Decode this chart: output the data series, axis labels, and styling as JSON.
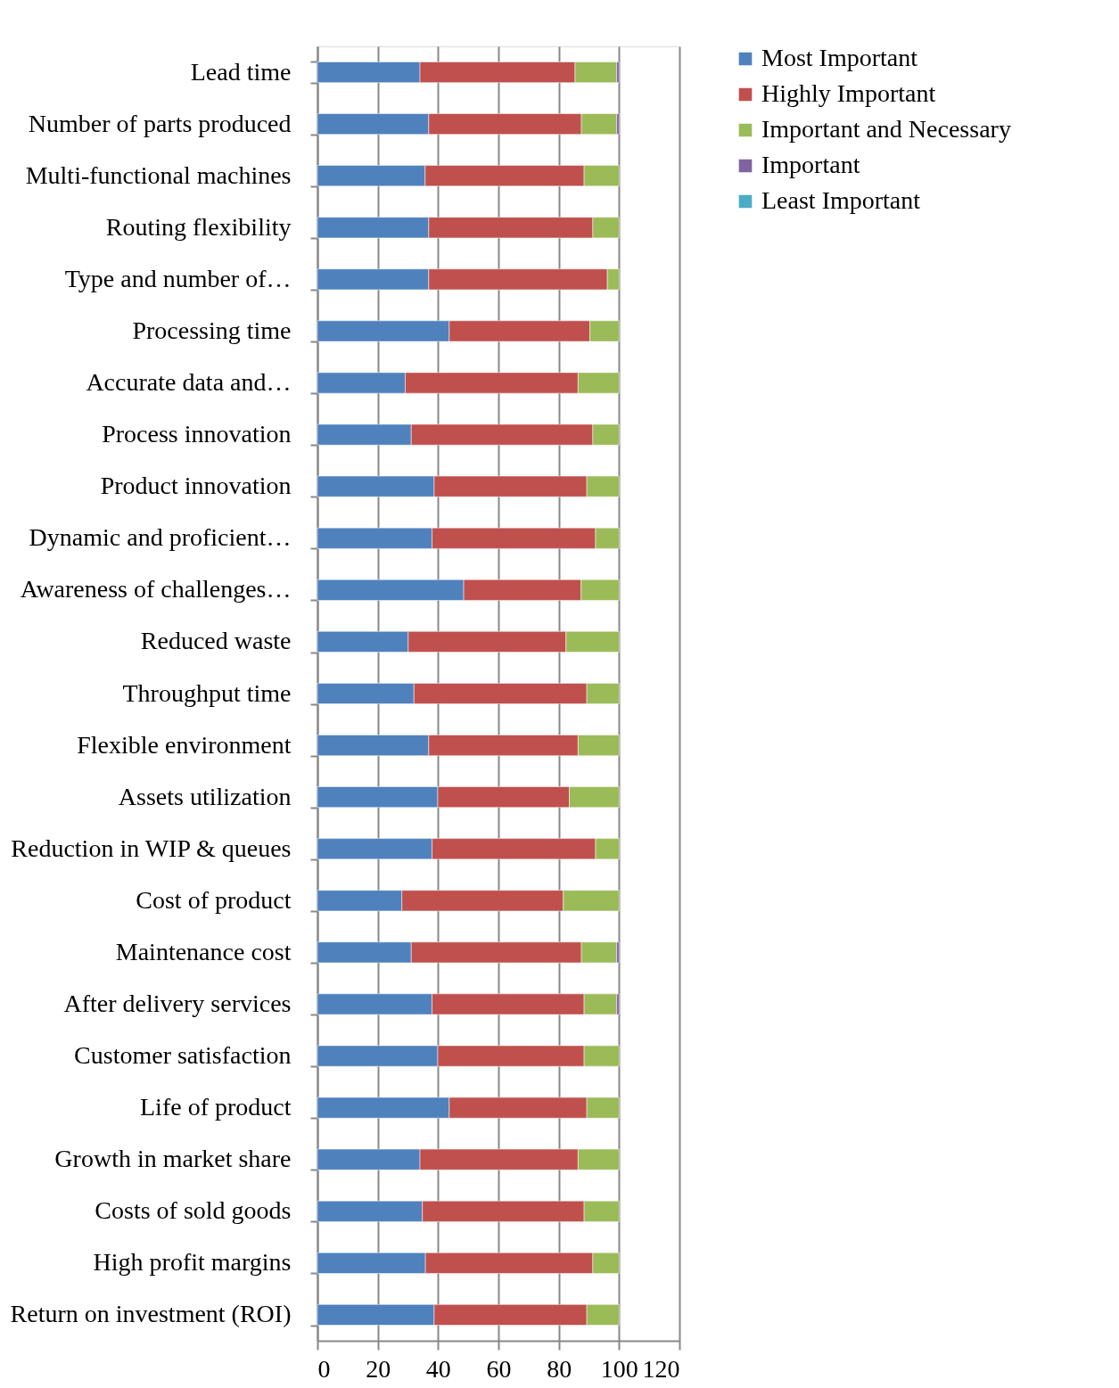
{
  "chart_data": {
    "type": "bar",
    "orientation": "horizontal",
    "stacked": true,
    "categories": [
      "Lead time",
      "Number of parts produced",
      "Multi-functional machines",
      "Routing flexibility",
      "Type and number of…",
      "Processing time",
      "Accurate data and…",
      "Process innovation",
      "Product innovation",
      "Dynamic and proficient…",
      "Awareness of challenges…",
      "Reduced waste",
      "Throughput time",
      "Flexible environment",
      "Assets utilization",
      "Reduction in WIP & queues",
      "Cost of product",
      "Maintenance cost",
      "After delivery services",
      "Customer satisfaction",
      "Life of product",
      "Growth in market share",
      "Costs of sold goods",
      "High profit margins",
      "Return on investment (ROI)"
    ],
    "series": [
      {
        "name": "Most Important",
        "color": "#4f81bd",
        "values": [
          34.0,
          36.9,
          35.7,
          36.9,
          36.9,
          43.7,
          29.1,
          31.1,
          38.7,
          38.0,
          48.5,
          30.1,
          32.0,
          36.9,
          39.9,
          38.0,
          28.0,
          31.1,
          38.0,
          39.9,
          43.7,
          34.0,
          34.8,
          35.8,
          38.7
        ]
      },
      {
        "name": "Highly Important",
        "color": "#c0504d",
        "values": [
          51.4,
          50.6,
          52.7,
          54.4,
          59.2,
          46.6,
          57.3,
          60.2,
          50.6,
          54.2,
          38.9,
          52.3,
          57.3,
          49.5,
          43.6,
          54.2,
          53.5,
          56.4,
          50.4,
          48.5,
          45.6,
          52.4,
          53.6,
          55.5,
          50.6
        ]
      },
      {
        "name": "Important and Necessary",
        "color": "#9bbb59",
        "values": [
          13.8,
          11.7,
          11.6,
          8.7,
          3.9,
          9.7,
          13.6,
          8.7,
          10.7,
          7.8,
          12.6,
          17.6,
          10.7,
          13.6,
          16.5,
          7.8,
          18.5,
          11.7,
          10.8,
          11.6,
          10.7,
          13.6,
          11.6,
          8.7,
          10.7
        ]
      },
      {
        "name": " Important",
        "color": "#8064a2",
        "values": [
          0.8,
          0.8,
          null,
          null,
          null,
          null,
          null,
          null,
          null,
          null,
          null,
          null,
          null,
          null,
          null,
          null,
          null,
          0.8,
          0.8,
          null,
          null,
          null,
          null,
          null,
          null
        ]
      },
      {
        "name": "Least Important",
        "color": "#4bacc6",
        "values": [
          null,
          null,
          null,
          null,
          null,
          null,
          null,
          null,
          null,
          null,
          null,
          null,
          null,
          null,
          null,
          null,
          null,
          null,
          null,
          null,
          null,
          null,
          null,
          null,
          null
        ]
      }
    ],
    "xlim": [
      0,
      120
    ],
    "xticks": [
      0,
      20,
      40,
      60,
      80,
      100,
      120
    ],
    "grid": "x",
    "legend": "right"
  }
}
